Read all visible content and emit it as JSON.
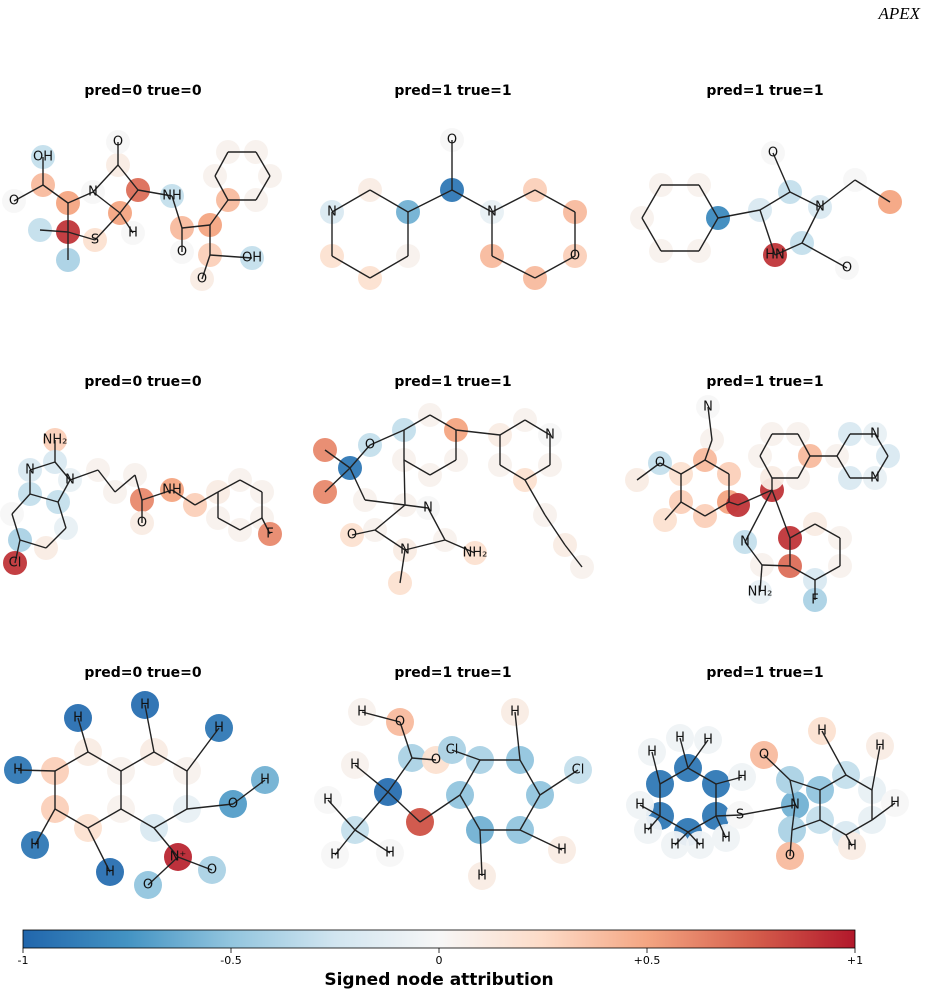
{
  "header": "APEX",
  "chart_data": {
    "type": "molecule-grid",
    "panels": [
      {
        "title": "pred=0  true=0",
        "atoms": [
          {
            "label": "OH",
            "attribution": -0.3
          },
          {
            "attribution": 0.4
          },
          {
            "label": "O",
            "attribution": 0
          },
          {
            "attribution": 0.5
          },
          {
            "attribution": 0.9
          },
          {
            "attribution": -0.3
          },
          {
            "attribution": -0.4
          },
          {
            "label": "S",
            "attribution": 0.2
          },
          {
            "label": "N",
            "attribution": 0
          },
          {
            "attribution": 0.5
          },
          {
            "attribution": 0.7
          },
          {
            "attribution": 0.1
          },
          {
            "label": "O",
            "attribution": 0
          },
          {
            "label": "NH",
            "attribution": -0.3
          },
          {
            "label": "H",
            "attribution": 0
          },
          {
            "attribution": 0.4
          },
          {
            "label": "O",
            "attribution": 0
          },
          {
            "attribution": 0.5
          },
          {
            "attribution": 0.4
          },
          {
            "attribution": 0.05
          },
          {
            "attribution": 0.05
          },
          {
            "attribution": 0.05
          },
          {
            "attribution": 0.05
          },
          {
            "attribution": 0.05
          },
          {
            "attribution": 0.3
          },
          {
            "label": "O",
            "attribution": 0.1
          },
          {
            "label": "OH",
            "attribution": -0.3
          }
        ]
      },
      {
        "title": "pred=1  true=1",
        "atoms": [
          {
            "attribution": 0.1
          },
          {
            "attribution": -0.6
          },
          {
            "attribution": 0.05
          },
          {
            "attribution": 0.2
          },
          {
            "attribution": 0.2
          },
          {
            "label": "N",
            "attribution": -0.2
          },
          {
            "attribution": -0.9
          },
          {
            "label": "O",
            "attribution": 0
          },
          {
            "label": "N",
            "attribution": -0.1
          },
          {
            "attribution": 0.3
          },
          {
            "attribution": 0.4
          },
          {
            "label": "O",
            "attribution": 0.3
          },
          {
            "attribution": 0.4
          },
          {
            "attribution": 0.4
          }
        ]
      },
      {
        "title": "pred=1  true=1",
        "atoms": [
          {
            "attribution": -0.8
          },
          {
            "attribution": 0.05
          },
          {
            "attribution": 0.05
          },
          {
            "attribution": 0.05
          },
          {
            "attribution": 0.05
          },
          {
            "attribution": 0.05
          },
          {
            "attribution": -0.2
          },
          {
            "attribution": -0.3
          },
          {
            "label": "O",
            "attribution": 0
          },
          {
            "label": "N",
            "attribution": -0.2
          },
          {
            "attribution": -0.3
          },
          {
            "label": "O",
            "attribution": 0
          },
          {
            "label": "HN",
            "attribution": 0.9
          },
          {
            "attribution": 0
          },
          {
            "attribution": 0.5
          }
        ]
      },
      {
        "title": "pred=0  true=0",
        "atoms": [
          {
            "label": "NH₂",
            "attribution": 0.3
          },
          {
            "attribution": -0.2
          },
          {
            "label": "N",
            "attribution": -0.2
          },
          {
            "label": "N",
            "attribution": -0.1
          },
          {
            "attribution": -0.3
          },
          {
            "attribution": -0.3
          },
          {
            "attribution": -0.1
          },
          {
            "attribution": 0.1
          },
          {
            "attribution": -0.4
          },
          {
            "attribution": 0
          },
          {
            "label": "Cl",
            "attribution": 0.9
          },
          {
            "attribution": 0.05
          },
          {
            "attribution": 0.05
          },
          {
            "attribution": 0.05
          },
          {
            "attribution": 0.6
          },
          {
            "label": "O",
            "attribution": 0.1
          },
          {
            "label": "NH",
            "attribution": 0.5
          },
          {
            "attribution": 0.3
          },
          {
            "attribution": 0.1
          },
          {
            "attribution": 0.05
          },
          {
            "attribution": 0.05
          },
          {
            "attribution": 0.05
          },
          {
            "attribution": 0.05
          },
          {
            "attribution": 0.05
          },
          {
            "label": "F",
            "attribution": 0.6
          }
        ]
      },
      {
        "title": "pred=1  true=1",
        "atoms": [
          {
            "attribution": 0.05
          },
          {
            "attribution": 0.5
          },
          {
            "attribution": 0.05
          },
          {
            "attribution": 0.05
          },
          {
            "attribution": 0.05
          },
          {
            "attribution": -0.3
          },
          {
            "label": "O",
            "attribution": -0.3
          },
          {
            "attribution": -0.9
          },
          {
            "attribution": 0.6
          },
          {
            "attribution": 0.6
          },
          {
            "attribution": 0.05
          },
          {
            "attribution": 0.05
          },
          {
            "label": "N",
            "attribution": 0
          },
          {
            "attribution": 0.05
          },
          {
            "label": "NH₂",
            "attribution": 0.2
          },
          {
            "label": "N",
            "attribution": 0.1
          },
          {
            "attribution": 0.2
          },
          {
            "attribution": 0.05
          },
          {
            "label": "O",
            "attribution": 0.2
          },
          {
            "attribution": 0.1
          },
          {
            "attribution": 0.05
          },
          {
            "label": "N",
            "attribution": 0
          },
          {
            "attribution": 0.05
          },
          {
            "attribution": 0.2
          },
          {
            "attribution": 0.05
          },
          {
            "attribution": 0.05
          },
          {
            "attribution": 0.1
          },
          {
            "attribution": 0.05
          }
        ]
      },
      {
        "title": "pred=1  true=1",
        "atoms": [
          {
            "label": "N",
            "attribution": 0
          },
          {
            "attribution": 0.05
          },
          {
            "attribution": 0.4
          },
          {
            "attribution": 0.3
          },
          {
            "attribution": 0.5
          },
          {
            "attribution": 0.3
          },
          {
            "attribution": 0.3
          },
          {
            "attribution": 0.2
          },
          {
            "label": "O",
            "attribution": -0.3
          },
          {
            "attribution": 0.1
          },
          {
            "attribution": 0.2
          },
          {
            "attribution": 0.9
          },
          {
            "attribution": 0.9
          },
          {
            "attribution": 0.1
          },
          {
            "attribution": 0.05
          },
          {
            "attribution": 0.05
          },
          {
            "attribution": 0.05
          },
          {
            "attribution": 0.4
          },
          {
            "attribution": 0.05
          },
          {
            "attribution": 0.05
          },
          {
            "attribution": -0.2
          },
          {
            "label": "N",
            "attribution": -0.1
          },
          {
            "attribution": -0.2
          },
          {
            "label": "N",
            "attribution": -0.1
          },
          {
            "attribution": -0.2
          },
          {
            "attribution": 0.9
          },
          {
            "attribution": 0.1
          },
          {
            "attribution": 0.05
          },
          {
            "attribution": 0.05
          },
          {
            "attribution": -0.2
          },
          {
            "attribution": 0.7
          },
          {
            "label": "F",
            "attribution": -0.4
          },
          {
            "label": "N",
            "attribution": -0.3
          },
          {
            "attribution": 0.05
          },
          {
            "label": "NH₂",
            "attribution": -0.1
          }
        ]
      },
      {
        "title": "pred=0  true=0",
        "atoms": [
          {
            "attribution": 0.1
          },
          {
            "attribution": 0.05
          },
          {
            "attribution": 0.05
          },
          {
            "attribution": 0.2
          },
          {
            "attribution": 0.3
          },
          {
            "attribution": 0.3
          },
          {
            "attribution": 0.1
          },
          {
            "attribution": 0.05
          },
          {
            "attribution": -0.1
          },
          {
            "attribution": -0.2
          },
          {
            "label": "H",
            "attribution": -0.95
          },
          {
            "label": "H",
            "attribution": -0.95
          },
          {
            "label": "H",
            "attribution": -0.9
          },
          {
            "label": "H",
            "attribution": -0.9
          },
          {
            "label": "H",
            "attribution": -0.9
          },
          {
            "label": "H",
            "attribution": -0.95
          },
          {
            "label": "O",
            "attribution": -0.7
          },
          {
            "label": "H",
            "attribution": -0.6
          },
          {
            "label": "N⁺",
            "attribution": 0.95
          },
          {
            "label": "O",
            "attribution": -0.5
          },
          {
            "label": "O",
            "attribution": -0.4
          }
        ]
      },
      {
        "title": "pred=1  true=1",
        "atoms": [
          {
            "label": "O",
            "attribution": 0.4
          },
          {
            "label": "H",
            "attribution": 0.05
          },
          {
            "attribution": -0.4
          },
          {
            "label": "O",
            "attribution": 0.2
          },
          {
            "attribution": -0.95
          },
          {
            "label": "H",
            "attribution": 0.05
          },
          {
            "attribution": -0.3
          },
          {
            "label": "H",
            "attribution": 0
          },
          {
            "label": "H",
            "attribution": 0
          },
          {
            "label": "H",
            "attribution": 0
          },
          {
            "attribution": 0.8
          },
          {
            "attribution": -0.5
          },
          {
            "attribution": -0.4
          },
          {
            "attribution": -0.5
          },
          {
            "attribution": -0.5
          },
          {
            "attribution": -0.5
          },
          {
            "attribution": -0.6
          },
          {
            "label": "Cl",
            "attribution": -0.4
          },
          {
            "label": "Cl",
            "attribution": -0.3
          },
          {
            "label": "H",
            "attribution": 0.1
          },
          {
            "label": "H",
            "attribution": 0.1
          },
          {
            "label": "H",
            "attribution": 0.1
          }
        ]
      },
      {
        "title": "pred=1  true=1",
        "atoms": [
          {
            "attribution": -0.9
          },
          {
            "attribution": -0.9
          },
          {
            "attribution": -0.9
          },
          {
            "attribution": -0.9
          },
          {
            "attribution": -0.9
          },
          {
            "attribution": -0.9
          },
          {
            "label": "H",
            "attribution": -0.05
          },
          {
            "label": "H",
            "attribution": -0.05
          },
          {
            "label": "H",
            "attribution": -0.05
          },
          {
            "label": "H",
            "attribution": -0.05
          },
          {
            "label": "H",
            "attribution": -0.05
          },
          {
            "label": "H",
            "attribution": -0.05
          },
          {
            "label": "H",
            "attribution": -0.05
          },
          {
            "label": "H",
            "attribution": -0.05
          },
          {
            "label": "H",
            "attribution": -0.05
          },
          {
            "label": "S",
            "attribution": 0
          },
          {
            "label": "N",
            "attribution": -0.6
          },
          {
            "attribution": -0.4
          },
          {
            "label": "O",
            "attribution": 0.4
          },
          {
            "attribution": -0.4
          },
          {
            "label": "O",
            "attribution": 0.4
          },
          {
            "attribution": -0.5
          },
          {
            "attribution": -0.3
          },
          {
            "attribution": -0.2
          },
          {
            "attribution": -0.1
          },
          {
            "attribution": -0.1
          },
          {
            "attribution": -0.3
          },
          {
            "label": "H",
            "attribution": 0.2
          },
          {
            "label": "H",
            "attribution": 0.1
          },
          {
            "label": "H",
            "attribution": 0
          },
          {
            "label": "H",
            "attribution": 0.1
          }
        ]
      }
    ],
    "colorbar": {
      "label": "Signed node attribution",
      "clim": [
        -1,
        1
      ],
      "ticks": [
        -1,
        -0.5,
        0,
        {
          "value": 0.5,
          "label": "+0.5"
        },
        {
          "value": 1,
          "label": "+1"
        }
      ]
    }
  }
}
